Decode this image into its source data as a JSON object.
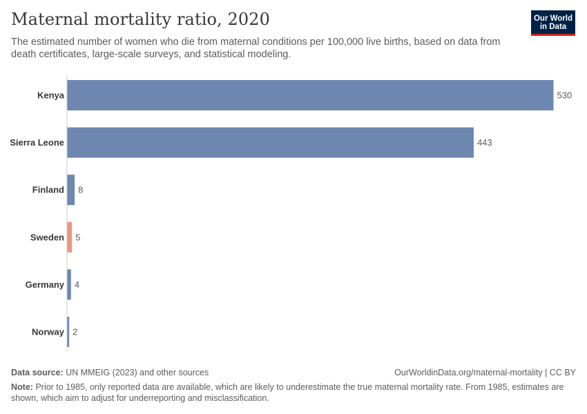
{
  "header": {
    "title": "Maternal mortality ratio, 2020",
    "subtitle": "The estimated number of women who die from maternal conditions per 100,000 live births, based on data from death certificates, large-scale surveys, and statistical modeling."
  },
  "logo": {
    "line1": "Our World",
    "line2": "in Data"
  },
  "footer": {
    "source_label": "Data source:",
    "source_text": "UN MMEIG (2023) and other sources",
    "url": "OurWorldinData.org/maternal-mortality | CC BY",
    "note_label": "Note:",
    "note_text": "Prior to 1985, only reported data are available, which are likely to underestimate the true maternal mortality rate. From 1985, estimates are shown, which aim to adjust for underreporting and misclassification."
  },
  "colors": {
    "bar": "#6d87b1",
    "highlight": "#f0947c",
    "axis": "#cccccc",
    "label": "#373737",
    "value": "#5b5b5b"
  },
  "chart_data": {
    "type": "bar",
    "orientation": "horizontal",
    "categories": [
      "Kenya",
      "Sierra Leone",
      "Finland",
      "Sweden",
      "Germany",
      "Norway"
    ],
    "values": [
      530,
      443,
      8,
      5,
      4,
      2
    ],
    "highlighted": [
      "Sweden"
    ],
    "title": "Maternal mortality ratio, 2020",
    "xlabel": "",
    "ylabel": "",
    "xlim": [
      0,
      530
    ],
    "grid": false
  }
}
